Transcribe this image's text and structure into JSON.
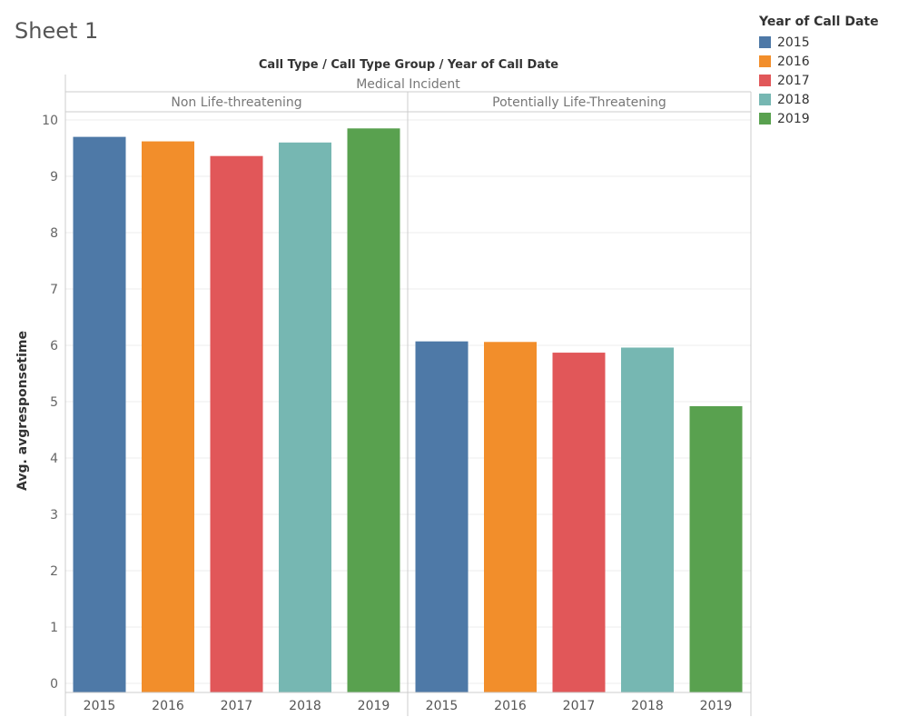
{
  "sheet": {
    "title": "Sheet 1"
  },
  "header": {
    "title": "Call Type  /  Call Type Group  /  Year of Call Date"
  },
  "legend": {
    "title": "Year of Call Date",
    "items": [
      {
        "label": "2015",
        "color": "#4e79a7"
      },
      {
        "label": "2016",
        "color": "#f28e2b"
      },
      {
        "label": "2017",
        "color": "#e15759"
      },
      {
        "label": "2018",
        "color": "#76b7b2"
      },
      {
        "label": "2019",
        "color": "#59a14f"
      }
    ]
  },
  "chart_data": {
    "type": "bar",
    "title": "Call Type  /  Call Type Group  /  Year of Call Date",
    "call_type": "Medical Incident",
    "groups": [
      "Non Life-threatening",
      "Potentially Life-Threatening"
    ],
    "categories": [
      "2015",
      "2016",
      "2017",
      "2018",
      "2019"
    ],
    "series": [
      {
        "group": "Non Life-threatening",
        "values": [
          9.7,
          9.62,
          9.36,
          9.6,
          9.85
        ]
      },
      {
        "group": "Potentially Life-Threatening",
        "values": [
          6.07,
          6.06,
          5.87,
          5.96,
          4.92
        ]
      }
    ],
    "colors": [
      "#4e79a7",
      "#f28e2b",
      "#e15759",
      "#76b7b2",
      "#59a14f"
    ],
    "ylabel": "Avg. avgresponsetime",
    "xlabel": "",
    "ylim": [
      0,
      10.3
    ],
    "yticks": [
      0,
      1,
      2,
      3,
      4,
      5,
      6,
      7,
      8,
      9,
      10
    ],
    "grid": true,
    "legend_position": "top-right"
  }
}
